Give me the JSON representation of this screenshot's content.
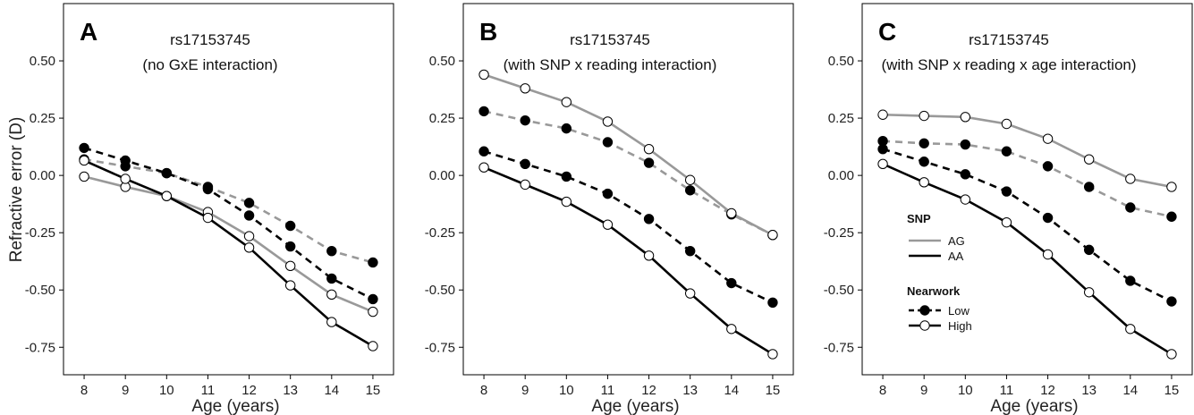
{
  "ylabel": "Refractive error (D)",
  "xlabel": "Age (years)",
  "colors": {
    "AG": "#999999",
    "AA": "#000000",
    "open_marker_fill": "#ffffff"
  },
  "chart_data": [
    {
      "type": "line",
      "panel": "A",
      "title_line1": "rs17153745",
      "title_line2": "(no GxE interaction)",
      "x": [
        8,
        9,
        10,
        11,
        12,
        13,
        14,
        15
      ],
      "xlim": [
        7.5,
        15.5
      ],
      "ylim": [
        -0.87,
        0.75
      ],
      "yticks": [
        0.5,
        0.25,
        0.0,
        -0.25,
        -0.5,
        -0.75
      ],
      "ytick_labels": [
        "0.50",
        "0.25",
        "0.00",
        "-0.25",
        "-0.50",
        "-0.75"
      ],
      "series": [
        {
          "snp": "AG",
          "nearwork": "Low",
          "values": [
            0.07,
            0.04,
            0.01,
            -0.05,
            -0.12,
            -0.22,
            -0.33,
            -0.38
          ]
        },
        {
          "snp": "AA",
          "nearwork": "Low",
          "values": [
            0.12,
            0.065,
            0.01,
            -0.06,
            -0.175,
            -0.31,
            -0.45,
            -0.54
          ]
        },
        {
          "snp": "AG",
          "nearwork": "High",
          "values": [
            -0.005,
            -0.05,
            -0.09,
            -0.16,
            -0.265,
            -0.395,
            -0.52,
            -0.595
          ]
        },
        {
          "snp": "AA",
          "nearwork": "High",
          "values": [
            0.065,
            -0.015,
            -0.09,
            -0.185,
            -0.315,
            -0.48,
            -0.64,
            -0.745
          ]
        }
      ]
    },
    {
      "type": "line",
      "panel": "B",
      "title_line1": "rs17153745",
      "title_line2": "(with SNP x reading interaction)",
      "x": [
        8,
        9,
        10,
        11,
        12,
        13,
        14,
        15
      ],
      "xlim": [
        7.5,
        15.5
      ],
      "ylim": [
        -0.87,
        0.75
      ],
      "yticks": [
        0.5,
        0.25,
        0.0,
        -0.25,
        -0.5,
        -0.75
      ],
      "ytick_labels": [
        "0.50",
        "0.25",
        "0.00",
        "-0.25",
        "-0.50",
        "-0.75"
      ],
      "series": [
        {
          "snp": "AG",
          "nearwork": "Low",
          "values": [
            0.28,
            0.24,
            0.205,
            0.145,
            0.055,
            -0.065,
            -0.17,
            -0.26
          ]
        },
        {
          "snp": "AA",
          "nearwork": "Low",
          "values": [
            0.105,
            0.05,
            -0.005,
            -0.08,
            -0.19,
            -0.33,
            -0.47,
            -0.555
          ]
        },
        {
          "snp": "AG",
          "nearwork": "High",
          "values": [
            0.44,
            0.38,
            0.32,
            0.235,
            0.115,
            -0.02,
            -0.165,
            -0.26
          ]
        },
        {
          "snp": "AA",
          "nearwork": "High",
          "values": [
            0.035,
            -0.04,
            -0.115,
            -0.215,
            -0.35,
            -0.515,
            -0.67,
            -0.78
          ]
        }
      ]
    },
    {
      "type": "line",
      "panel": "C",
      "title_line1": "rs17153745",
      "title_line2": "(with SNP x reading x age interaction)",
      "x": [
        8,
        9,
        10,
        11,
        12,
        13,
        14,
        15
      ],
      "xlim": [
        7.5,
        15.5
      ],
      "ylim": [
        -0.87,
        0.75
      ],
      "yticks": [
        0.5,
        0.25,
        0.0,
        -0.25,
        -0.5,
        -0.75
      ],
      "ytick_labels": [
        "0.50",
        "0.25",
        "0.00",
        "-0.25",
        "-0.50",
        "-0.75"
      ],
      "series": [
        {
          "snp": "AG",
          "nearwork": "Low",
          "values": [
            0.15,
            0.14,
            0.135,
            0.105,
            0.04,
            -0.05,
            -0.14,
            -0.18
          ]
        },
        {
          "snp": "AA",
          "nearwork": "Low",
          "values": [
            0.115,
            0.06,
            0.005,
            -0.07,
            -0.185,
            -0.325,
            -0.46,
            -0.55
          ]
        },
        {
          "snp": "AG",
          "nearwork": "High",
          "values": [
            0.265,
            0.26,
            0.255,
            0.225,
            0.16,
            0.07,
            -0.015,
            -0.05
          ]
        },
        {
          "snp": "AA",
          "nearwork": "High",
          "values": [
            0.05,
            -0.03,
            -0.105,
            -0.205,
            -0.345,
            -0.51,
            -0.67,
            -0.78
          ]
        }
      ],
      "legend": {
        "snp_title": "SNP",
        "snp_items": [
          {
            "label": "AG",
            "snp": "AG"
          },
          {
            "label": "AA",
            "snp": "AA"
          }
        ],
        "nearwork_title": "Nearwork",
        "nearwork_items": [
          {
            "label": "Low",
            "nearwork": "Low"
          },
          {
            "label": "High",
            "nearwork": "High"
          }
        ]
      }
    }
  ]
}
